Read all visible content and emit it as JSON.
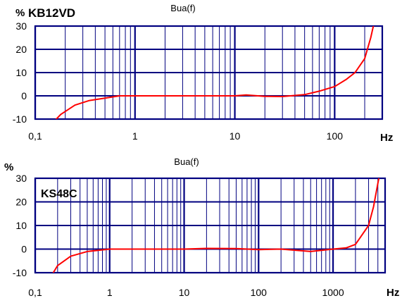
{
  "chart_data": [
    {
      "type": "line",
      "title": "Bua(f)",
      "label": "KB12VD",
      "ylabel": "%",
      "xlabel": "Hz",
      "xscale": "log",
      "xlim": [
        0.1,
        300
      ],
      "ylim": [
        -10,
        30
      ],
      "xticks": [
        "0,1",
        "1",
        "10",
        "100"
      ],
      "yticks": [
        "-10",
        "0",
        "10",
        "20",
        "30"
      ],
      "grid": true,
      "series": [
        {
          "color": "#ff0000",
          "x": [
            0.14,
            0.18,
            0.25,
            0.35,
            0.5,
            0.7,
            1,
            3,
            10,
            13,
            20,
            30,
            50,
            70,
            100,
            130,
            160,
            200,
            230,
            250
          ],
          "y": [
            -13,
            -8,
            -4,
            -2,
            -1,
            0,
            0,
            0,
            0,
            0.4,
            -0.2,
            -0.3,
            0.5,
            2,
            4,
            7,
            10,
            16,
            25,
            32
          ]
        }
      ]
    },
    {
      "type": "line",
      "title": "Bua(f)",
      "label": "KS48C",
      "ylabel": "%",
      "xlabel": "Hz",
      "xscale": "log",
      "xlim": [
        0.1,
        5000
      ],
      "ylim": [
        -10,
        30
      ],
      "xticks": [
        "0,1",
        "1",
        "10",
        "100",
        "1000"
      ],
      "yticks": [
        "-10",
        "0",
        "10",
        "20",
        "30"
      ],
      "grid": true,
      "series": [
        {
          "color": "#ff0000",
          "x": [
            0.16,
            0.2,
            0.3,
            0.5,
            0.7,
            1,
            3,
            10,
            20,
            50,
            100,
            200,
            500,
            700,
            1000,
            1500,
            2000,
            3000,
            3500,
            4000,
            4300
          ],
          "y": [
            -12,
            -7,
            -3,
            -1,
            -0.5,
            0,
            0,
            0,
            0.3,
            0.2,
            -0.2,
            0,
            -1,
            -0.5,
            0,
            0.5,
            2,
            10,
            18,
            28,
            33
          ]
        }
      ]
    }
  ]
}
